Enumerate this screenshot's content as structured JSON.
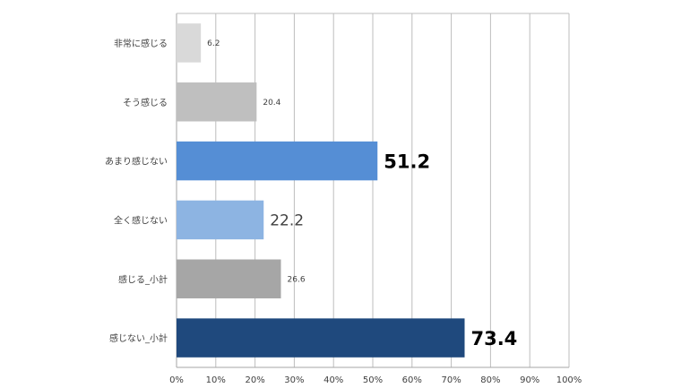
{
  "chart_data": {
    "type": "bar",
    "orientation": "horizontal",
    "categories": [
      "非常に感じる",
      "そう感じる",
      "あまり感じない",
      "全く感じない",
      "感じる_小計",
      "感じない_小計"
    ],
    "values": [
      6.2,
      20.4,
      51.2,
      22.2,
      26.6,
      73.4
    ],
    "value_labels": [
      "6.2",
      "20.4",
      "51.2",
      "22.2",
      "26.6",
      "73.4"
    ],
    "bar_colors": [
      "#d9d9d9",
      "#bfbfbf",
      "#558ed5",
      "#8db4e2",
      "#a6a6a6",
      "#1f497d"
    ],
    "label_styles": [
      "small",
      "small",
      "large-bold",
      "medium",
      "small",
      "large-bold"
    ],
    "xlim": [
      0,
      100
    ],
    "x_ticks": [
      "0%",
      "10%",
      "20%",
      "30%",
      "40%",
      "50%",
      "60%",
      "70%",
      "80%",
      "90%",
      "100%"
    ],
    "x_tick_values": [
      0,
      10,
      20,
      30,
      40,
      50,
      60,
      70,
      80,
      90,
      100
    ],
    "grid": "vertical"
  }
}
